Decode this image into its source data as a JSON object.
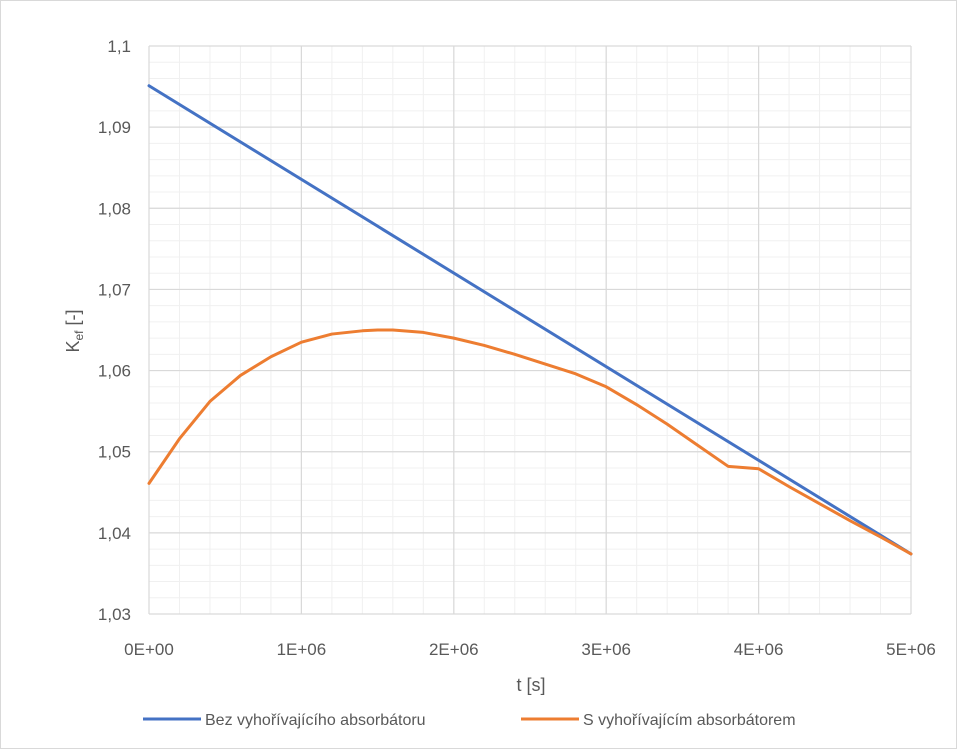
{
  "chart_data": {
    "type": "line",
    "title": "",
    "xlabel": "t [s]",
    "ylabel_main": "K",
    "ylabel_sub": "ef",
    "ylabel_suffix": " [-]",
    "xlim": [
      0,
      5000000
    ],
    "ylim": [
      1.03,
      1.1
    ],
    "x_ticks": [
      {
        "value": 0,
        "label": "0E+00"
      },
      {
        "value": 1000000,
        "label": "1E+06"
      },
      {
        "value": 2000000,
        "label": "2E+06"
      },
      {
        "value": 3000000,
        "label": "3E+06"
      },
      {
        "value": 4000000,
        "label": "4E+06"
      },
      {
        "value": 5000000,
        "label": "5E+06"
      }
    ],
    "y_ticks": [
      {
        "value": 1.03,
        "label": "1,03"
      },
      {
        "value": 1.04,
        "label": "1,04"
      },
      {
        "value": 1.05,
        "label": "1,05"
      },
      {
        "value": 1.06,
        "label": "1,06"
      },
      {
        "value": 1.07,
        "label": "1,07"
      },
      {
        "value": 1.08,
        "label": "1,08"
      },
      {
        "value": 1.09,
        "label": "1,09"
      },
      {
        "value": 1.1,
        "label": "1,1"
      }
    ],
    "minor_x_step": 200000,
    "minor_y_step": 0.002,
    "grid": true,
    "legend_position": "bottom",
    "series": [
      {
        "name": "Bez vyhořívajícího absorbátoru",
        "color": "#4472c4",
        "x": [
          0,
          5000000
        ],
        "y": [
          1.0951,
          1.0374
        ]
      },
      {
        "name": "S vyhořívajícím absorbátorem",
        "color": "#ed7d31",
        "x": [
          0,
          200000,
          400000,
          600000,
          800000,
          1000000,
          1200000,
          1400000,
          1500000,
          1600000,
          1800000,
          2000000,
          2200000,
          2400000,
          2600000,
          2800000,
          3000000,
          3200000,
          3400000,
          3600000,
          3800000,
          4000000,
          4200000,
          4400000,
          4600000,
          4800000,
          5000000
        ],
        "y": [
          1.0461,
          1.0516,
          1.0562,
          1.0594,
          1.0617,
          1.0635,
          1.0645,
          1.0649,
          1.065,
          1.065,
          1.0647,
          1.064,
          1.0631,
          1.062,
          1.0608,
          1.0596,
          1.058,
          1.0558,
          1.0534,
          1.0508,
          1.0482,
          1.0479,
          1.0457,
          1.0436,
          1.0415,
          1.0395,
          1.0374
        ]
      }
    ]
  }
}
